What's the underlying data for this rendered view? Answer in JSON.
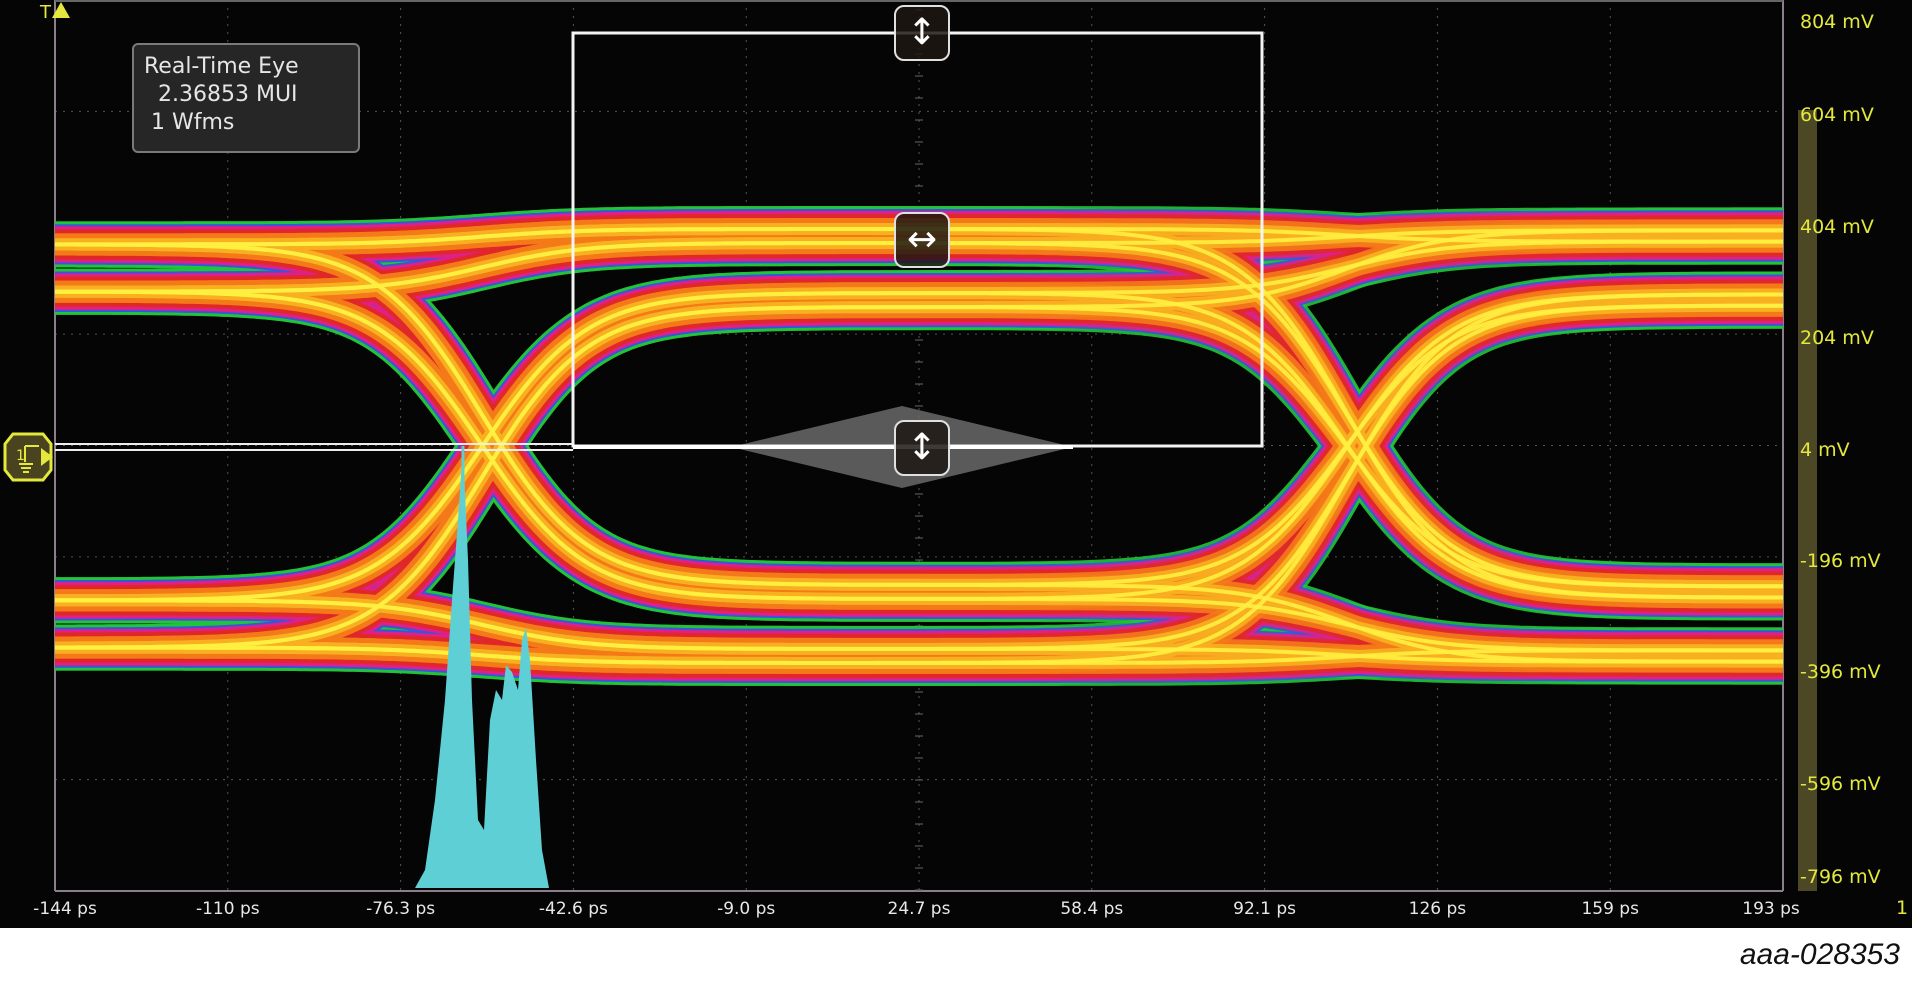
{
  "display": {
    "info_box": {
      "title": "Real-Time Eye",
      "ui_count": "2.36853 MUI",
      "waveforms": "1 Wfms"
    },
    "trigger_marker": "T",
    "channel_label": "1",
    "x_axis_labels": [
      "-144 ps",
      "-110 ps",
      "-76.3 ps",
      "-42.6 ps",
      "-9.0 ps",
      "24.7 ps",
      "58.4 ps",
      "92.1 ps",
      "126 ps",
      "159 ps",
      "193 ps"
    ],
    "y_axis_labels": [
      "804 mV",
      "604 mV",
      "404 mV",
      "204 mV",
      "4 mV",
      "-196 mV",
      "-396 mV",
      "-596 mV",
      "-796 mV"
    ],
    "handles": {
      "top": "vertical-resize-icon",
      "middle": "horizontal-resize-icon",
      "bottom": "vertical-resize-icon"
    },
    "ground_marker_icon": "channel-1-ground-reference-icon"
  },
  "colors": {
    "background": "#050505",
    "axis_label": "#e4e83c",
    "histogram": "#5fcfd6",
    "eye_palette": [
      "#22c43a",
      "#3a55d8",
      "#e0208a",
      "#e02828",
      "#f47a18",
      "#f8b020",
      "#fff040"
    ]
  },
  "figure_id": "aaa-028353"
}
